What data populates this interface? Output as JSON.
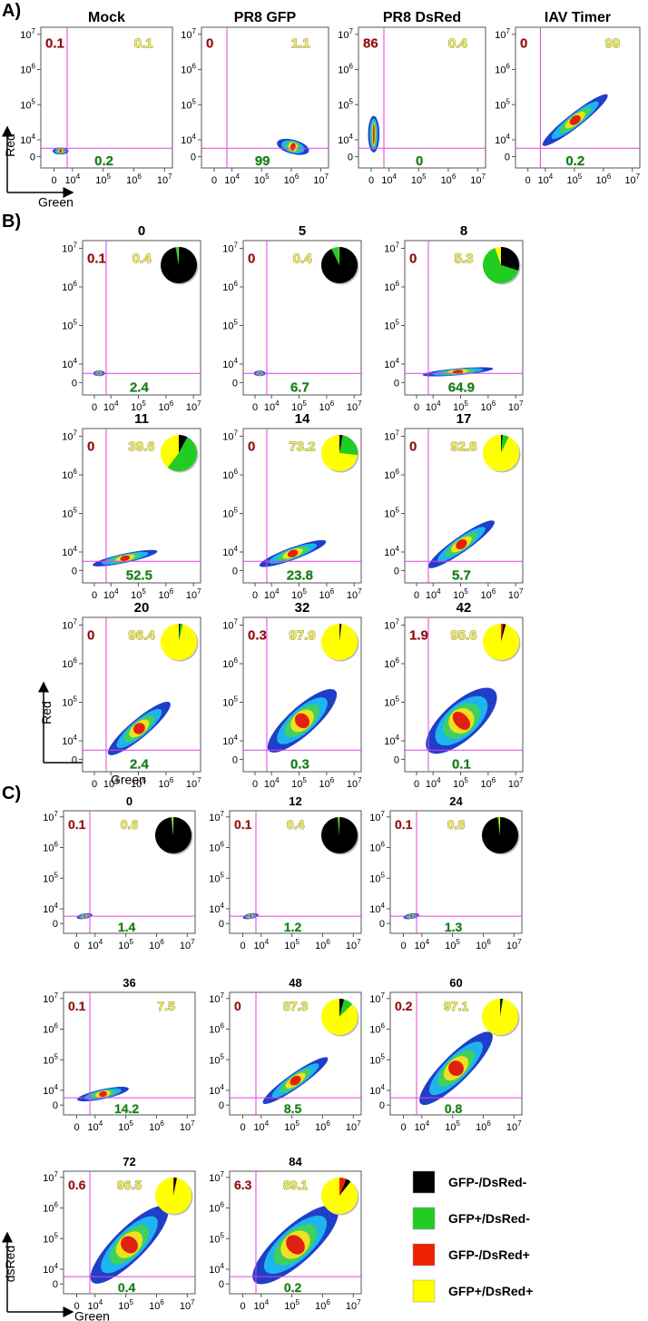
{
  "axis_ticks": [
    {
      "value": 0,
      "label": "0"
    },
    {
      "value": 10000,
      "base": "10",
      "exp": "4"
    },
    {
      "value": 100000,
      "base": "10",
      "exp": "5"
    },
    {
      "value": 1000000,
      "base": "10",
      "exp": "6"
    },
    {
      "value": 10000000,
      "base": "10",
      "exp": "7"
    }
  ],
  "panels": [
    {
      "label": "A)",
      "y_axis_label": "Red",
      "x_axis_label": "Green",
      "plots": [
        {
          "title": "Mock",
          "red": 0.1,
          "yellow": 0.1,
          "green": 0.2
        },
        {
          "title": "PR8 GFP",
          "red": 0,
          "yellow": 1.1,
          "green": 99
        },
        {
          "title": "PR8 DsRed",
          "red": 86,
          "yellow": 0.4,
          "green": 0
        },
        {
          "title": "IAV Timer",
          "red": 0,
          "yellow": 99,
          "green": 0.2
        }
      ]
    },
    {
      "label": "B)",
      "y_axis_label": "Red",
      "x_axis_label": "Green",
      "plots": [
        {
          "title": "0",
          "red": 0.1,
          "yellow": 0.4,
          "green": 2.4,
          "pie": true
        },
        {
          "title": "5",
          "red": 0,
          "yellow": 0.4,
          "green": 6.7,
          "pie": true
        },
        {
          "title": "8",
          "red": 0,
          "yellow": 5.3,
          "green": 64.9,
          "pie": true
        },
        {
          "title": "11",
          "red": 0,
          "yellow": 39.6,
          "green": 52.5,
          "pie": true
        },
        {
          "title": "14",
          "red": 0,
          "yellow": 73.2,
          "green": 23.8,
          "pie": true
        },
        {
          "title": "17",
          "red": 0,
          "yellow": 92.8,
          "green": 5.7,
          "pie": true
        },
        {
          "title": "20",
          "red": 0,
          "yellow": 96.4,
          "green": 2.4,
          "pie": true
        },
        {
          "title": "32",
          "red": 0.3,
          "yellow": 97.9,
          "green": 0.3,
          "pie": true
        },
        {
          "title": "42",
          "red": 1.9,
          "yellow": 95.6,
          "green": 0.1,
          "pie": true
        }
      ]
    },
    {
      "label": "C)",
      "y_axis_label": "dsRed",
      "x_axis_label": "Green",
      "plots": [
        {
          "title": "0",
          "red": 0.1,
          "yellow": 0.6,
          "green": 1.4,
          "pie": true
        },
        {
          "title": "12",
          "red": 0.1,
          "yellow": 0.4,
          "green": 1.2,
          "pie": true
        },
        {
          "title": "24",
          "red": 0.1,
          "yellow": 0.8,
          "green": 1.3,
          "pie": true
        },
        {
          "title": "36",
          "red": 0.1,
          "yellow": 7.5,
          "green": 14.2,
          "pie": false
        },
        {
          "title": "48",
          "red": 0,
          "yellow": 87.3,
          "green": 8.5,
          "pie": true
        },
        {
          "title": "60",
          "red": 0.2,
          "yellow": 97.1,
          "green": 0.8,
          "pie": true
        },
        {
          "title": "72",
          "red": 0.6,
          "yellow": 96.5,
          "green": 0.4,
          "pie": true
        },
        {
          "title": "84",
          "red": 6.3,
          "yellow": 89.1,
          "green": 0.2,
          "pie": true
        }
      ]
    }
  ],
  "legend": [
    {
      "label": "GFP-/DsRed-",
      "color": "#000000"
    },
    {
      "label": "GFP+/DsRed-",
      "color": "#22cc22"
    },
    {
      "label": "GFP-/DsRed+",
      "color": "#ee2200"
    },
    {
      "label": "GFP+/DsRed+",
      "color": "#ffff00"
    }
  ]
}
